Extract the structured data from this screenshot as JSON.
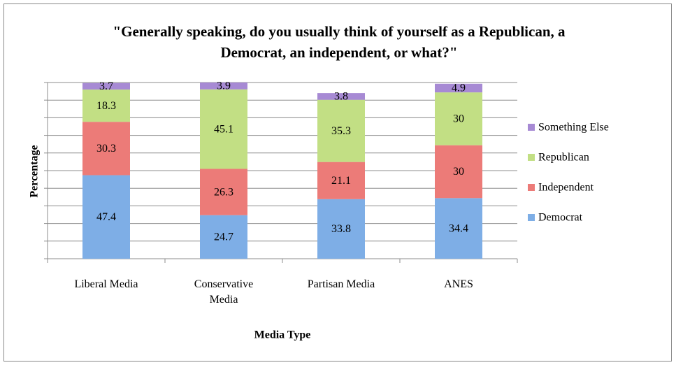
{
  "chart_data": {
    "type": "stacked-bar",
    "title": "\"Generally speaking, do you usually think of yourself as a Republican, a Democrat, an independent, or what?\"",
    "x_label": "Media Type",
    "y_label": "Percentage",
    "categories": [
      "Liberal Media",
      "Conservative Media",
      "Partisan Media",
      "ANES"
    ],
    "series": [
      {
        "name": "Democrat",
        "color": "#7eaee6",
        "values": [
          47.4,
          24.7,
          33.8,
          34.4
        ]
      },
      {
        "name": "Independent",
        "color": "#ec7b78",
        "values": [
          30.3,
          26.3,
          21.1,
          30
        ]
      },
      {
        "name": "Republican",
        "color": "#c2df84",
        "values": [
          18.3,
          45.1,
          35.3,
          30
        ]
      },
      {
        "name": "Something Else",
        "color": "#a78ad4",
        "values": [
          3.7,
          3.9,
          3.8,
          4.9
        ]
      }
    ],
    "ylim": [
      0,
      100
    ],
    "yticks": [
      0,
      10,
      20,
      30,
      40,
      50,
      60,
      70,
      80,
      90,
      100
    ],
    "grid": true,
    "legend": "right"
  }
}
